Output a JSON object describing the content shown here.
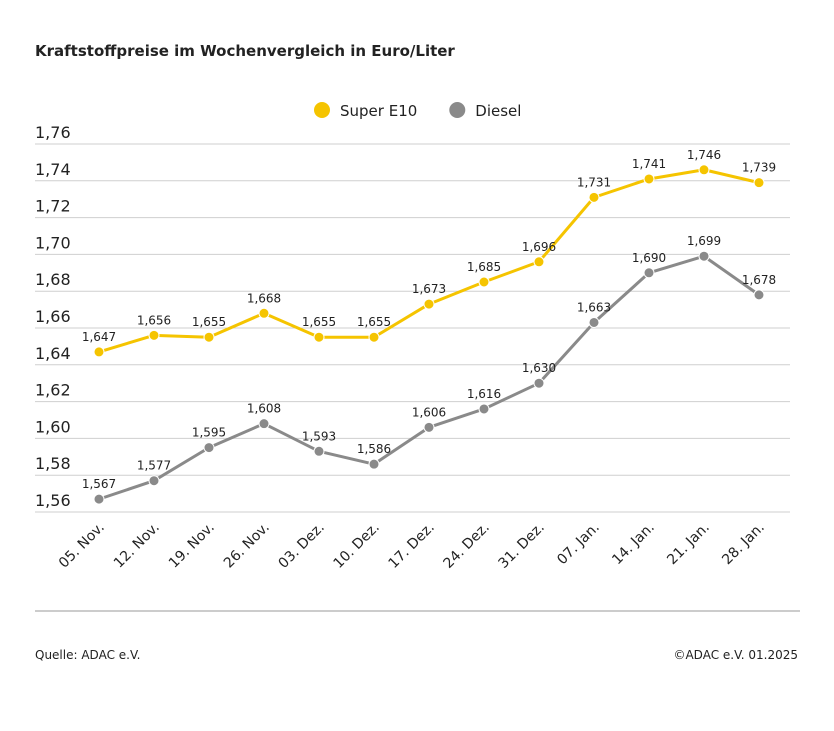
{
  "chart_data": {
    "type": "line",
    "title": "Kraftstoffpreise im Wochenvergleich in Euro/Liter",
    "categories": [
      "05. Nov.",
      "12. Nov.",
      "19. Nov.",
      "26. Nov.",
      "03. Dez.",
      "10. Dez.",
      "17. Dez.",
      "24. Dez.",
      "31. Dez.",
      "07. Jan.",
      "14. Jan.",
      "21. Jan.",
      "28. Jan."
    ],
    "series": [
      {
        "name": "Super E10",
        "color": "#f5c400",
        "values": [
          1.647,
          1.656,
          1.655,
          1.668,
          1.655,
          1.655,
          1.673,
          1.685,
          1.696,
          1.731,
          1.741,
          1.746,
          1.739
        ],
        "value_labels": [
          "1,647",
          "1,656",
          "1,655",
          "1,668",
          "1,655",
          "1,655",
          "1,673",
          "1,685",
          "1,696",
          "1,731",
          "1,741",
          "1,746",
          "1,739"
        ]
      },
      {
        "name": "Diesel",
        "color": "#8a8a8a",
        "values": [
          1.567,
          1.577,
          1.595,
          1.608,
          1.593,
          1.586,
          1.606,
          1.616,
          1.63,
          1.663,
          1.69,
          1.699,
          1.678
        ],
        "value_labels": [
          "1,567",
          "1,577",
          "1,595",
          "1,608",
          "1,593",
          "1,586",
          "1,606",
          "1,616",
          "1,630",
          "1,663",
          "1,690",
          "1,699",
          "1,678"
        ]
      }
    ],
    "ylim": [
      1.56,
      1.76
    ],
    "yticks": [
      {
        "value": 1.56,
        "label": "1,56"
      },
      {
        "value": 1.58,
        "label": "1,58"
      },
      {
        "value": 1.6,
        "label": "1,60"
      },
      {
        "value": 1.62,
        "label": "1,62"
      },
      {
        "value": 1.64,
        "label": "1,64"
      },
      {
        "value": 1.66,
        "label": "1,66"
      },
      {
        "value": 1.68,
        "label": "1,68"
      },
      {
        "value": 1.7,
        "label": "1,70"
      },
      {
        "value": 1.72,
        "label": "1,72"
      },
      {
        "value": 1.74,
        "label": "1,74"
      },
      {
        "value": 1.76,
        "label": "1,76"
      }
    ],
    "grid": true,
    "legend": "top",
    "source": "Quelle: ADAC e.V.",
    "copyright": "©ADAC e.V. 01.2025"
  }
}
